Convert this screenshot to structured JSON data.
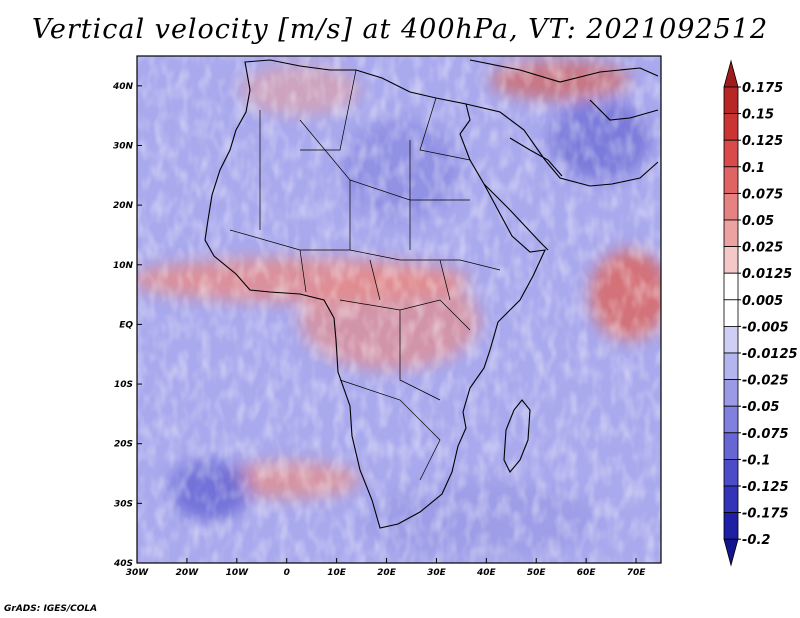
{
  "title": "Vertical velocity [m/s] at 400hPa, VT: 2021092512",
  "credit": "GrADS: IGES/COLA",
  "map": {
    "lon_range": [
      -30,
      75
    ],
    "lat_range": [
      -40,
      45
    ],
    "lon_ticks": [
      "30W",
      "20W",
      "10W",
      "0",
      "10E",
      "20E",
      "30E",
      "40E",
      "50E",
      "60E",
      "70E"
    ],
    "lat_ticks": [
      "40N",
      "30N",
      "20N",
      "10N",
      "EQ",
      "10S",
      "20S",
      "30S",
      "40S"
    ],
    "region": "Africa",
    "coastlines_color": "#000000"
  },
  "colorbar": {
    "labels": [
      "0.175",
      "0.15",
      "0.125",
      "0.1",
      "0.075",
      "0.05",
      "0.025",
      "0.0125",
      "0.005",
      "-0.005",
      "-0.0125",
      "-0.025",
      "-0.05",
      "-0.075",
      "-0.1",
      "-0.125",
      "-0.175",
      "-0.2"
    ],
    "colors": [
      "#a01c1c",
      "#b82626",
      "#cc3434",
      "#d94a4a",
      "#e06464",
      "#e68282",
      "#eda2a2",
      "#f5c8c8",
      "#ffffff",
      "#ffffff",
      "#cfcff5",
      "#b4b4ee",
      "#9a9ae6",
      "#8080de",
      "#6666d4",
      "#4c4cc8",
      "#3434b8",
      "#1f1fa6",
      "#14148e"
    ]
  }
}
